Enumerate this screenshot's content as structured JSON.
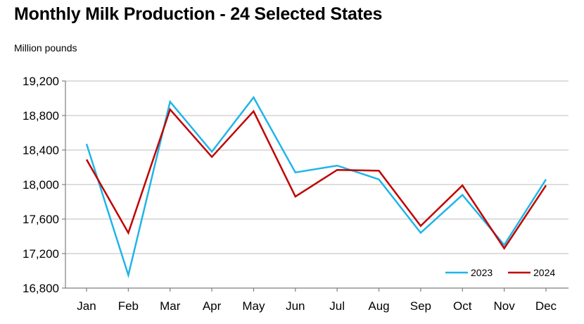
{
  "chart_data": {
    "type": "line",
    "title": "Monthly Milk Production - 24 Selected States",
    "ylabel": "Million pounds",
    "xlabel": "",
    "categories": [
      "Jan",
      "Feb",
      "Mar",
      "Apr",
      "May",
      "Jun",
      "Jul",
      "Aug",
      "Sep",
      "Oct",
      "Nov",
      "Dec"
    ],
    "ylim": [
      16800,
      19200
    ],
    "yticks": [
      16800,
      17200,
      17600,
      18000,
      18400,
      18800,
      19200
    ],
    "ytick_labels": [
      "16,800",
      "17,200",
      "17,600",
      "18,000",
      "18,400",
      "18,800",
      "19,200"
    ],
    "grid": true,
    "legend_position": "bottom-right",
    "series": [
      {
        "name": "2023",
        "color": "#1fb5e8",
        "values": [
          18470,
          16950,
          18960,
          18380,
          19010,
          18140,
          18220,
          18060,
          17440,
          17880,
          17300,
          18060
        ]
      },
      {
        "name": "2024",
        "color": "#c00000",
        "values": [
          18290,
          17440,
          18870,
          18320,
          18850,
          17860,
          18170,
          18160,
          17520,
          17990,
          17260,
          17990
        ]
      }
    ]
  }
}
